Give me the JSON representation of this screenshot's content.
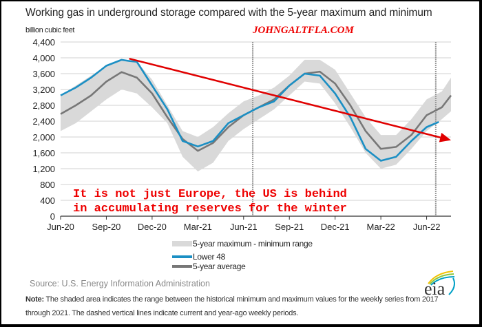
{
  "chart_data": {
    "type": "line",
    "title": "Working gas in underground storage compared with the 5-year maximum and minimum",
    "ylabel": "billion cubic feet",
    "xlabel": "",
    "x_unit": "months since Jun-20",
    "ylim": [
      0,
      4400
    ],
    "yticks": [
      0,
      400,
      800,
      1200,
      1600,
      2000,
      2400,
      2800,
      3200,
      3600,
      4000,
      4400
    ],
    "ytick_labels": [
      "0",
      "400",
      "800",
      "1,200",
      "1,600",
      "2,000",
      "2,400",
      "2,800",
      "3,200",
      "3,600",
      "4,000",
      "4,400"
    ],
    "xlim": [
      0,
      25.6
    ],
    "xticks": [
      0,
      3,
      6,
      9,
      12,
      15,
      18,
      21,
      24
    ],
    "xtick_labels": [
      "Jun-20",
      "Sep-20",
      "Dec-20",
      "Mar-21",
      "Jun-21",
      "Sep-21",
      "Dec-21",
      "Mar-22",
      "Jun-22"
    ],
    "grid": true,
    "legend_placement": "bottom-center",
    "range_x": [
      0,
      1,
      2,
      3,
      4,
      5,
      6,
      7,
      8,
      9,
      10,
      11,
      12,
      13,
      14,
      15,
      16,
      17,
      18,
      19,
      20,
      21,
      22,
      23,
      24,
      25,
      25.6
    ],
    "range_max": [
      3050,
      3300,
      3550,
      3800,
      3950,
      3900,
      3450,
      2800,
      2150,
      2000,
      2250,
      2600,
      2900,
      3050,
      3250,
      3550,
      3950,
      3950,
      3700,
      3100,
      2500,
      2050,
      2050,
      2450,
      2950,
      3150,
      3500
    ],
    "range_min": [
      2150,
      2350,
      2650,
      2950,
      3200,
      3100,
      2750,
      2350,
      1500,
      1130,
      1350,
      1900,
      2200,
      2450,
      2700,
      3050,
      3400,
      3350,
      2850,
      2250,
      1600,
      1200,
      1300,
      1700,
      2150,
      2450,
      2650
    ],
    "series": [
      {
        "name": "Lower 48",
        "color": "#1b8fc4",
        "x": [
          0,
          1,
          2,
          3,
          4,
          4.5,
          5,
          6,
          7,
          8,
          9,
          10,
          11,
          12,
          13,
          14,
          15,
          16,
          17,
          18,
          19,
          20,
          21,
          22,
          23,
          24,
          24.8
        ],
        "values": [
          3050,
          3250,
          3500,
          3800,
          3950,
          3920,
          3900,
          3300,
          2700,
          1900,
          1760,
          1900,
          2350,
          2550,
          2750,
          2900,
          3300,
          3600,
          3550,
          3100,
          2500,
          1700,
          1400,
          1500,
          1900,
          2250,
          2380
        ]
      },
      {
        "name": "5-year average",
        "color": "#777777",
        "x": [
          0,
          1,
          2,
          3,
          4,
          5,
          6,
          7,
          8,
          9,
          10,
          11,
          12,
          13,
          14,
          15,
          16,
          17,
          18,
          19,
          20,
          21,
          22,
          23,
          24,
          25,
          25.6
        ],
        "values": [
          2580,
          2800,
          3050,
          3400,
          3640,
          3500,
          3100,
          2500,
          1950,
          1650,
          1850,
          2250,
          2550,
          2750,
          2950,
          3300,
          3600,
          3650,
          3350,
          2800,
          2150,
          1700,
          1750,
          2050,
          2550,
          2750,
          3050
        ]
      }
    ],
    "range_label": "5-year maximum - minimum range",
    "dashed_vlines_x": [
      12.6,
      24.6
    ],
    "annotation_arrow": {
      "from": [
        4.5,
        3980
      ],
      "to": [
        25.6,
        1920
      ],
      "color": "#e00000"
    },
    "annotation_text": [
      "It is not just Europe, the US is behind",
      "in accumulating reserves for the winter"
    ]
  },
  "watermark": "JOHNGALTFLA.COM",
  "source": "Source:  U.S. Energy Information Administration",
  "note_label": "Note:",
  "note": " The shaded area indicates the range between the historical minimum and maximum values for the weekly series from 2017 through 2021. The dashed vertical lines indicate current and year-ago weekly periods.",
  "logo_text": "eia"
}
